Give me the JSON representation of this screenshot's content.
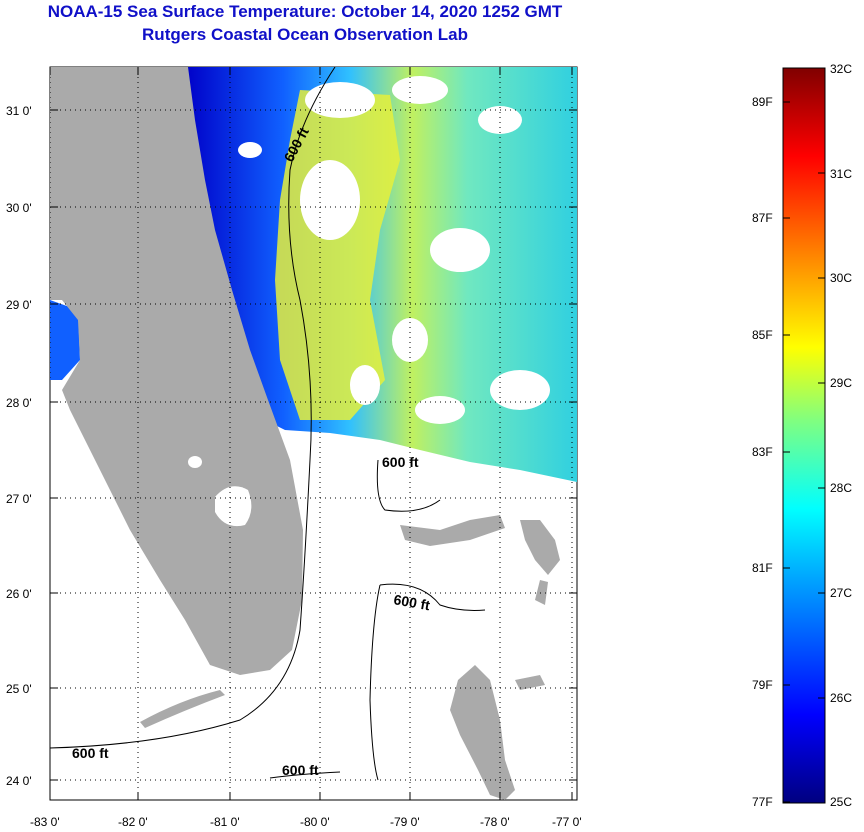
{
  "title": {
    "line1": "NOAA-15 Sea Surface Temperature:  October 14, 2020 1252 GMT",
    "line2": "Rutgers Coastal Ocean Observation Lab"
  },
  "map": {
    "lat_labels": [
      "31 0'",
      "30 0'",
      "29 0'",
      "28 0'",
      "27 0'",
      "26 0'",
      "25 0'",
      "24 0'"
    ],
    "lon_labels": [
      "-83 0'",
      "-82 0'",
      "-81 0'",
      "-80 0'",
      "-79 0'",
      "-78 0'",
      "-77 0'"
    ],
    "contour_labels": [
      "600 ft",
      "600 ft",
      "600 ft",
      "600 ft",
      "600 ft"
    ],
    "colors": {
      "land": "#aaaaaa",
      "no_data": "#ffffff",
      "contour": "#000000"
    }
  },
  "colorbar": {
    "celsius_labels": [
      "32C",
      "31C",
      "30C",
      "29C",
      "28C",
      "27C",
      "26C",
      "25C"
    ],
    "fahrenheit_labels": [
      "89F",
      "87F",
      "85F",
      "83F",
      "81F",
      "79F",
      "77F"
    ],
    "range_c": [
      25,
      32
    ],
    "colors": [
      "#000080",
      "#0000ff",
      "#00a0ff",
      "#00ffff",
      "#80ff80",
      "#ffff00",
      "#ff8000",
      "#ff0000",
      "#800000"
    ]
  }
}
